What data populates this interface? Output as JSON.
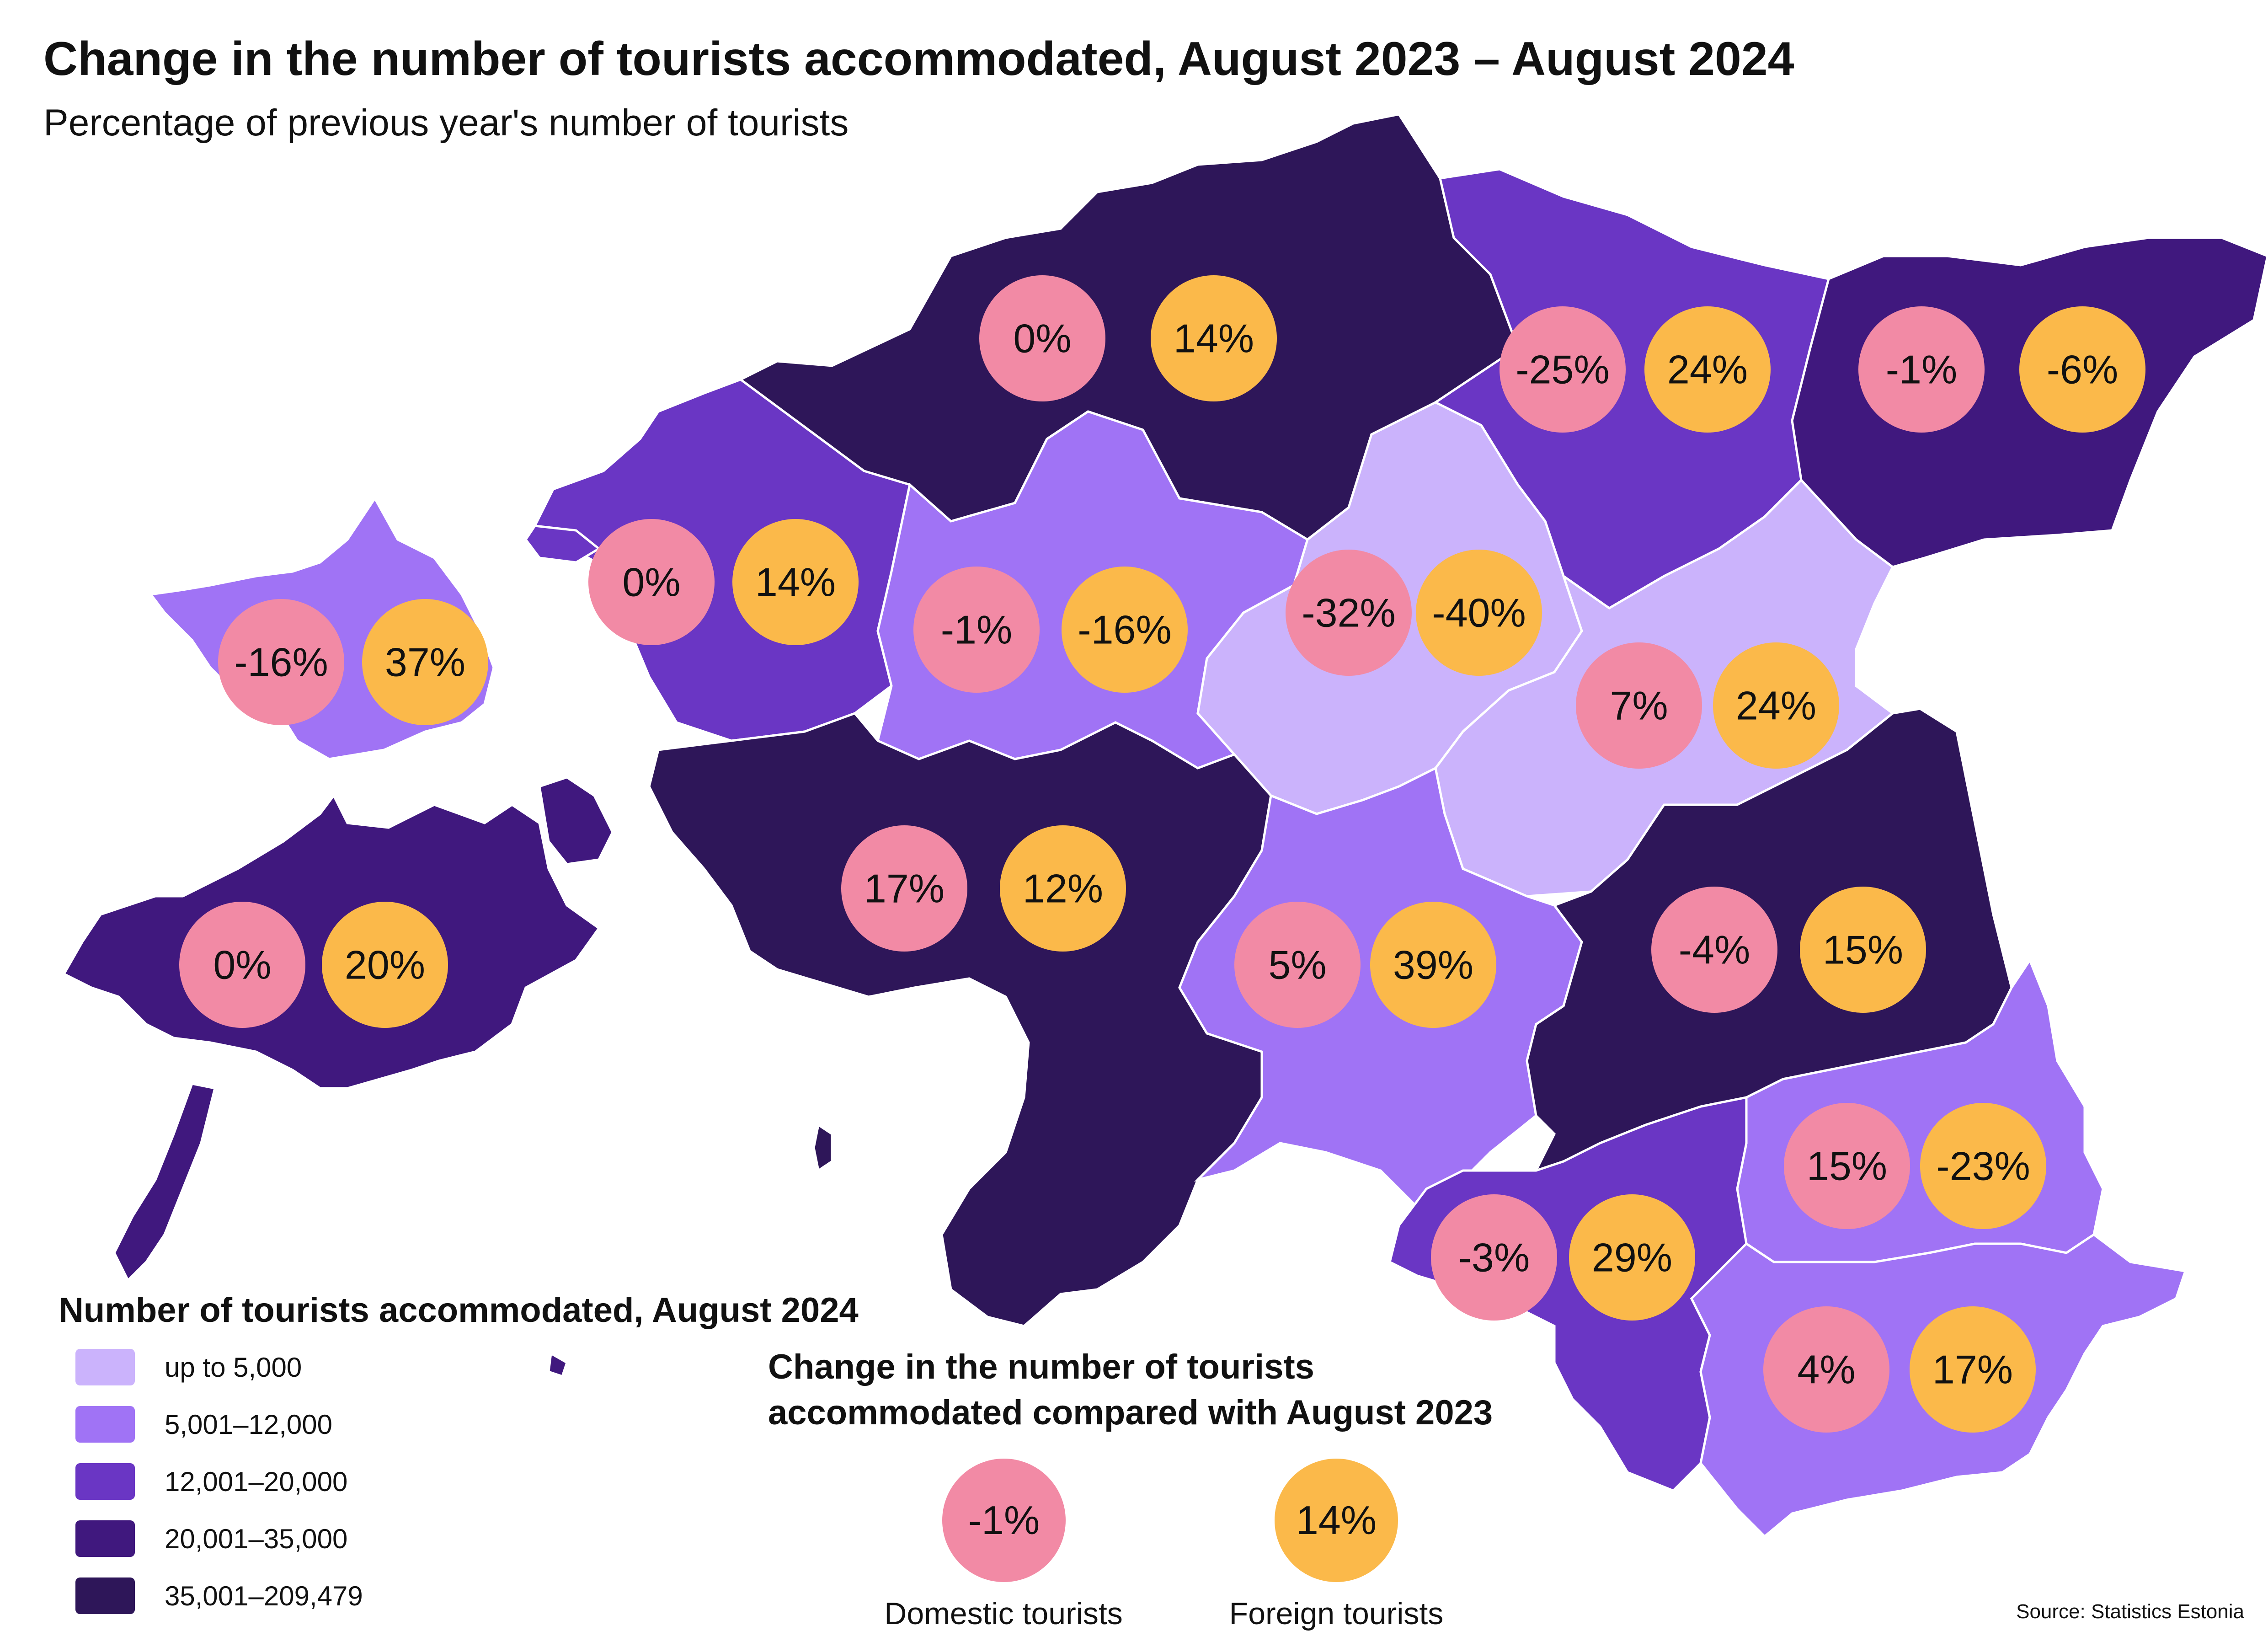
{
  "title": "Change in the number of tourists accommodated, August 2023 – August 2024",
  "subtitle": "Percentage of previous year's number of tourists",
  "colors": {
    "up_to_5000": "#cbb3fc",
    "5001_12000": "#a073f5",
    "12001_20000": "#6a36c4",
    "20001_35000": "#40187e",
    "35001_209479": "#2e1659",
    "domestic": "#f28aa5",
    "foreign": "#fbb94a",
    "background": "#ffffff"
  },
  "regions": [
    {
      "id": "harju",
      "fill_class": "35001_209479",
      "domestic": "0%",
      "foreign": "14%"
    },
    {
      "id": "laane-viru",
      "fill_class": "12001_20000",
      "domestic": "-25%",
      "foreign": "24%"
    },
    {
      "id": "ida-viru",
      "fill_class": "20001_35000",
      "domestic": "-1%",
      "foreign": "-6%"
    },
    {
      "id": "hiiu",
      "fill_class": "5001_12000",
      "domestic": "-16%",
      "foreign": "37%"
    },
    {
      "id": "laane",
      "fill_class": "12001_20000",
      "domestic": "0%",
      "foreign": "14%"
    },
    {
      "id": "rapla",
      "fill_class": "5001_12000",
      "domestic": "-1%",
      "foreign": "-16%"
    },
    {
      "id": "jarva",
      "fill_class": "up_to_5000",
      "domestic": "-32%",
      "foreign": "-40%"
    },
    {
      "id": "jogeva",
      "fill_class": "up_to_5000",
      "domestic": "7%",
      "foreign": "24%"
    },
    {
      "id": "saare",
      "fill_class": "20001_35000",
      "domestic": "0%",
      "foreign": "20%"
    },
    {
      "id": "parnu",
      "fill_class": "35001_209479",
      "domestic": "17%",
      "foreign": "12%"
    },
    {
      "id": "viljandi",
      "fill_class": "5001_12000",
      "domestic": "5%",
      "foreign": "39%"
    },
    {
      "id": "tartu",
      "fill_class": "35001_209479",
      "domestic": "-4%",
      "foreign": "15%"
    },
    {
      "id": "polva",
      "fill_class": "5001_12000",
      "domestic": "15%",
      "foreign": "-23%"
    },
    {
      "id": "valga",
      "fill_class": "12001_20000",
      "domestic": "-3%",
      "foreign": "29%"
    },
    {
      "id": "voru",
      "fill_class": "5001_12000",
      "domestic": "4%",
      "foreign": "17%"
    }
  ],
  "legend": {
    "title": "Number of tourists accommodated, August 2024",
    "items": [
      {
        "label": "up to 5,000",
        "color": "#cbb3fc"
      },
      {
        "label": "5,001–12,000",
        "color": "#a073f5"
      },
      {
        "label": "12,001–20,000",
        "color": "#6a36c4"
      },
      {
        "label": "20,001–35,000",
        "color": "#40187e"
      },
      {
        "label": "35,001–209,479",
        "color": "#2e1659"
      }
    ]
  },
  "change_legend": {
    "title_line1": "Change in the number of tourists",
    "title_line2": "accommodated compared with August 2023",
    "domestic_example": "-1%",
    "foreign_example": "14%",
    "domestic_label": "Domestic tourists",
    "foreign_label": "Foreign tourists"
  },
  "source": "Source: Statistics Estonia"
}
